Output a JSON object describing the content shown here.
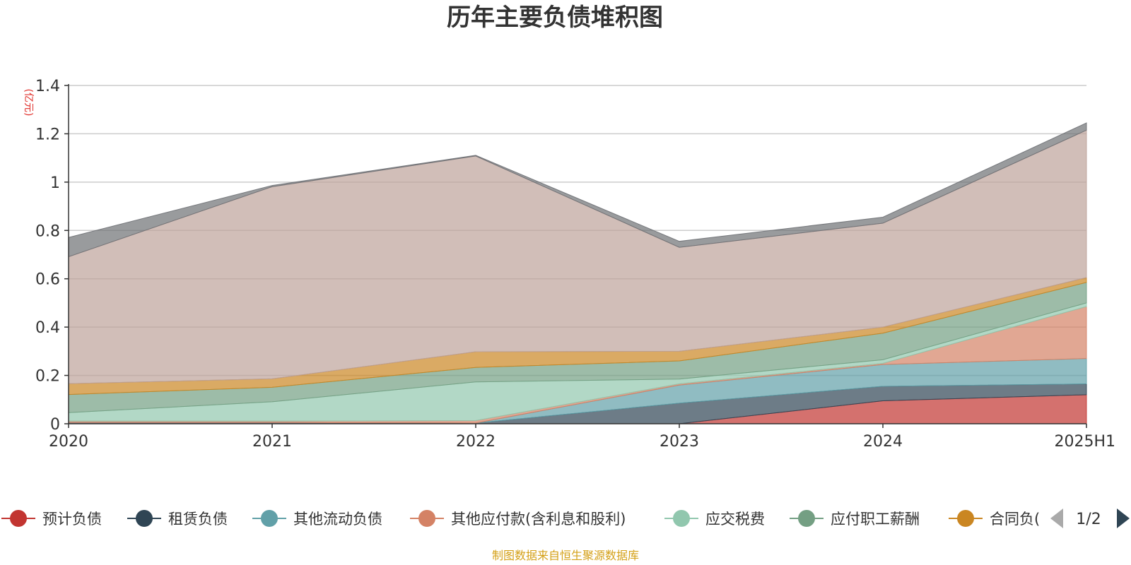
{
  "chart_data": {
    "type": "area",
    "stacked": true,
    "title": "历年主要负债堆积图",
    "unit_label": "(亿元)",
    "x": [
      "2020",
      "2021",
      "2022",
      "2023",
      "2024",
      "2025H1"
    ],
    "ylim": [
      0,
      1.4
    ],
    "yticks": [
      0,
      0.2,
      0.4,
      0.6,
      0.8,
      1,
      1.2,
      1.4
    ],
    "ytick_labels": [
      "0",
      "0.2",
      "0.4",
      "0.6",
      "0.8",
      "1",
      "1.2",
      "1.4"
    ],
    "grid": true,
    "legend_position": "bottom",
    "series": [
      {
        "name": "预计负债",
        "color": "#c23531",
        "values": [
          0,
          0,
          0,
          0,
          0.095,
          0.12
        ]
      },
      {
        "name": "租赁负债",
        "color": "#2f4554",
        "values": [
          0.005,
          0.005,
          0.003,
          0.085,
          0.06,
          0.045
        ]
      },
      {
        "name": "其他流动负债",
        "color": "#61a0a8",
        "values": [
          0,
          0,
          0,
          0.075,
          0.09,
          0.105
        ]
      },
      {
        "name": "其他应付款(含利息和股利)",
        "color": "#d48265",
        "values": [
          0.006,
          0.006,
          0.01,
          0.005,
          0.005,
          0.215
        ]
      },
      {
        "name": "应交税费",
        "color": "#91c7ae",
        "values": [
          0.035,
          0.08,
          0.16,
          0.02,
          0.015,
          0.015
        ]
      },
      {
        "name": "应付职工薪酬",
        "color": "#749f83",
        "values": [
          0.075,
          0.06,
          0.06,
          0.075,
          0.11,
          0.085
        ]
      },
      {
        "name": "合同负债",
        "color": "#ca8622",
        "values": [
          0.045,
          0.035,
          0.065,
          0.04,
          0.025,
          0.02
        ]
      },
      {
        "name": "",
        "color": "#bda29a",
        "values": [
          0.525,
          0.795,
          0.81,
          0.43,
          0.43,
          0.61
        ]
      },
      {
        "name": "",
        "color": "#6e7074",
        "values": [
          0.08,
          0.005,
          0.003,
          0.025,
          0.025,
          0.03
        ]
      }
    ],
    "legend_items": [
      {
        "name": "预计负债",
        "color": "#c23531"
      },
      {
        "name": "租赁负债",
        "color": "#2f4554"
      },
      {
        "name": "其他流动负债",
        "color": "#61a0a8"
      },
      {
        "name": "其他应付款(含利息和股利)",
        "color": "#d48265"
      },
      {
        "name": "应交税费",
        "color": "#91c7ae"
      },
      {
        "name": "应付职工薪酬",
        "color": "#749f83"
      },
      {
        "name": "合同负(",
        "color": "#ca8622"
      }
    ],
    "legend_page": "1/2",
    "source": "制图数据来自恒生聚源数据库"
  }
}
